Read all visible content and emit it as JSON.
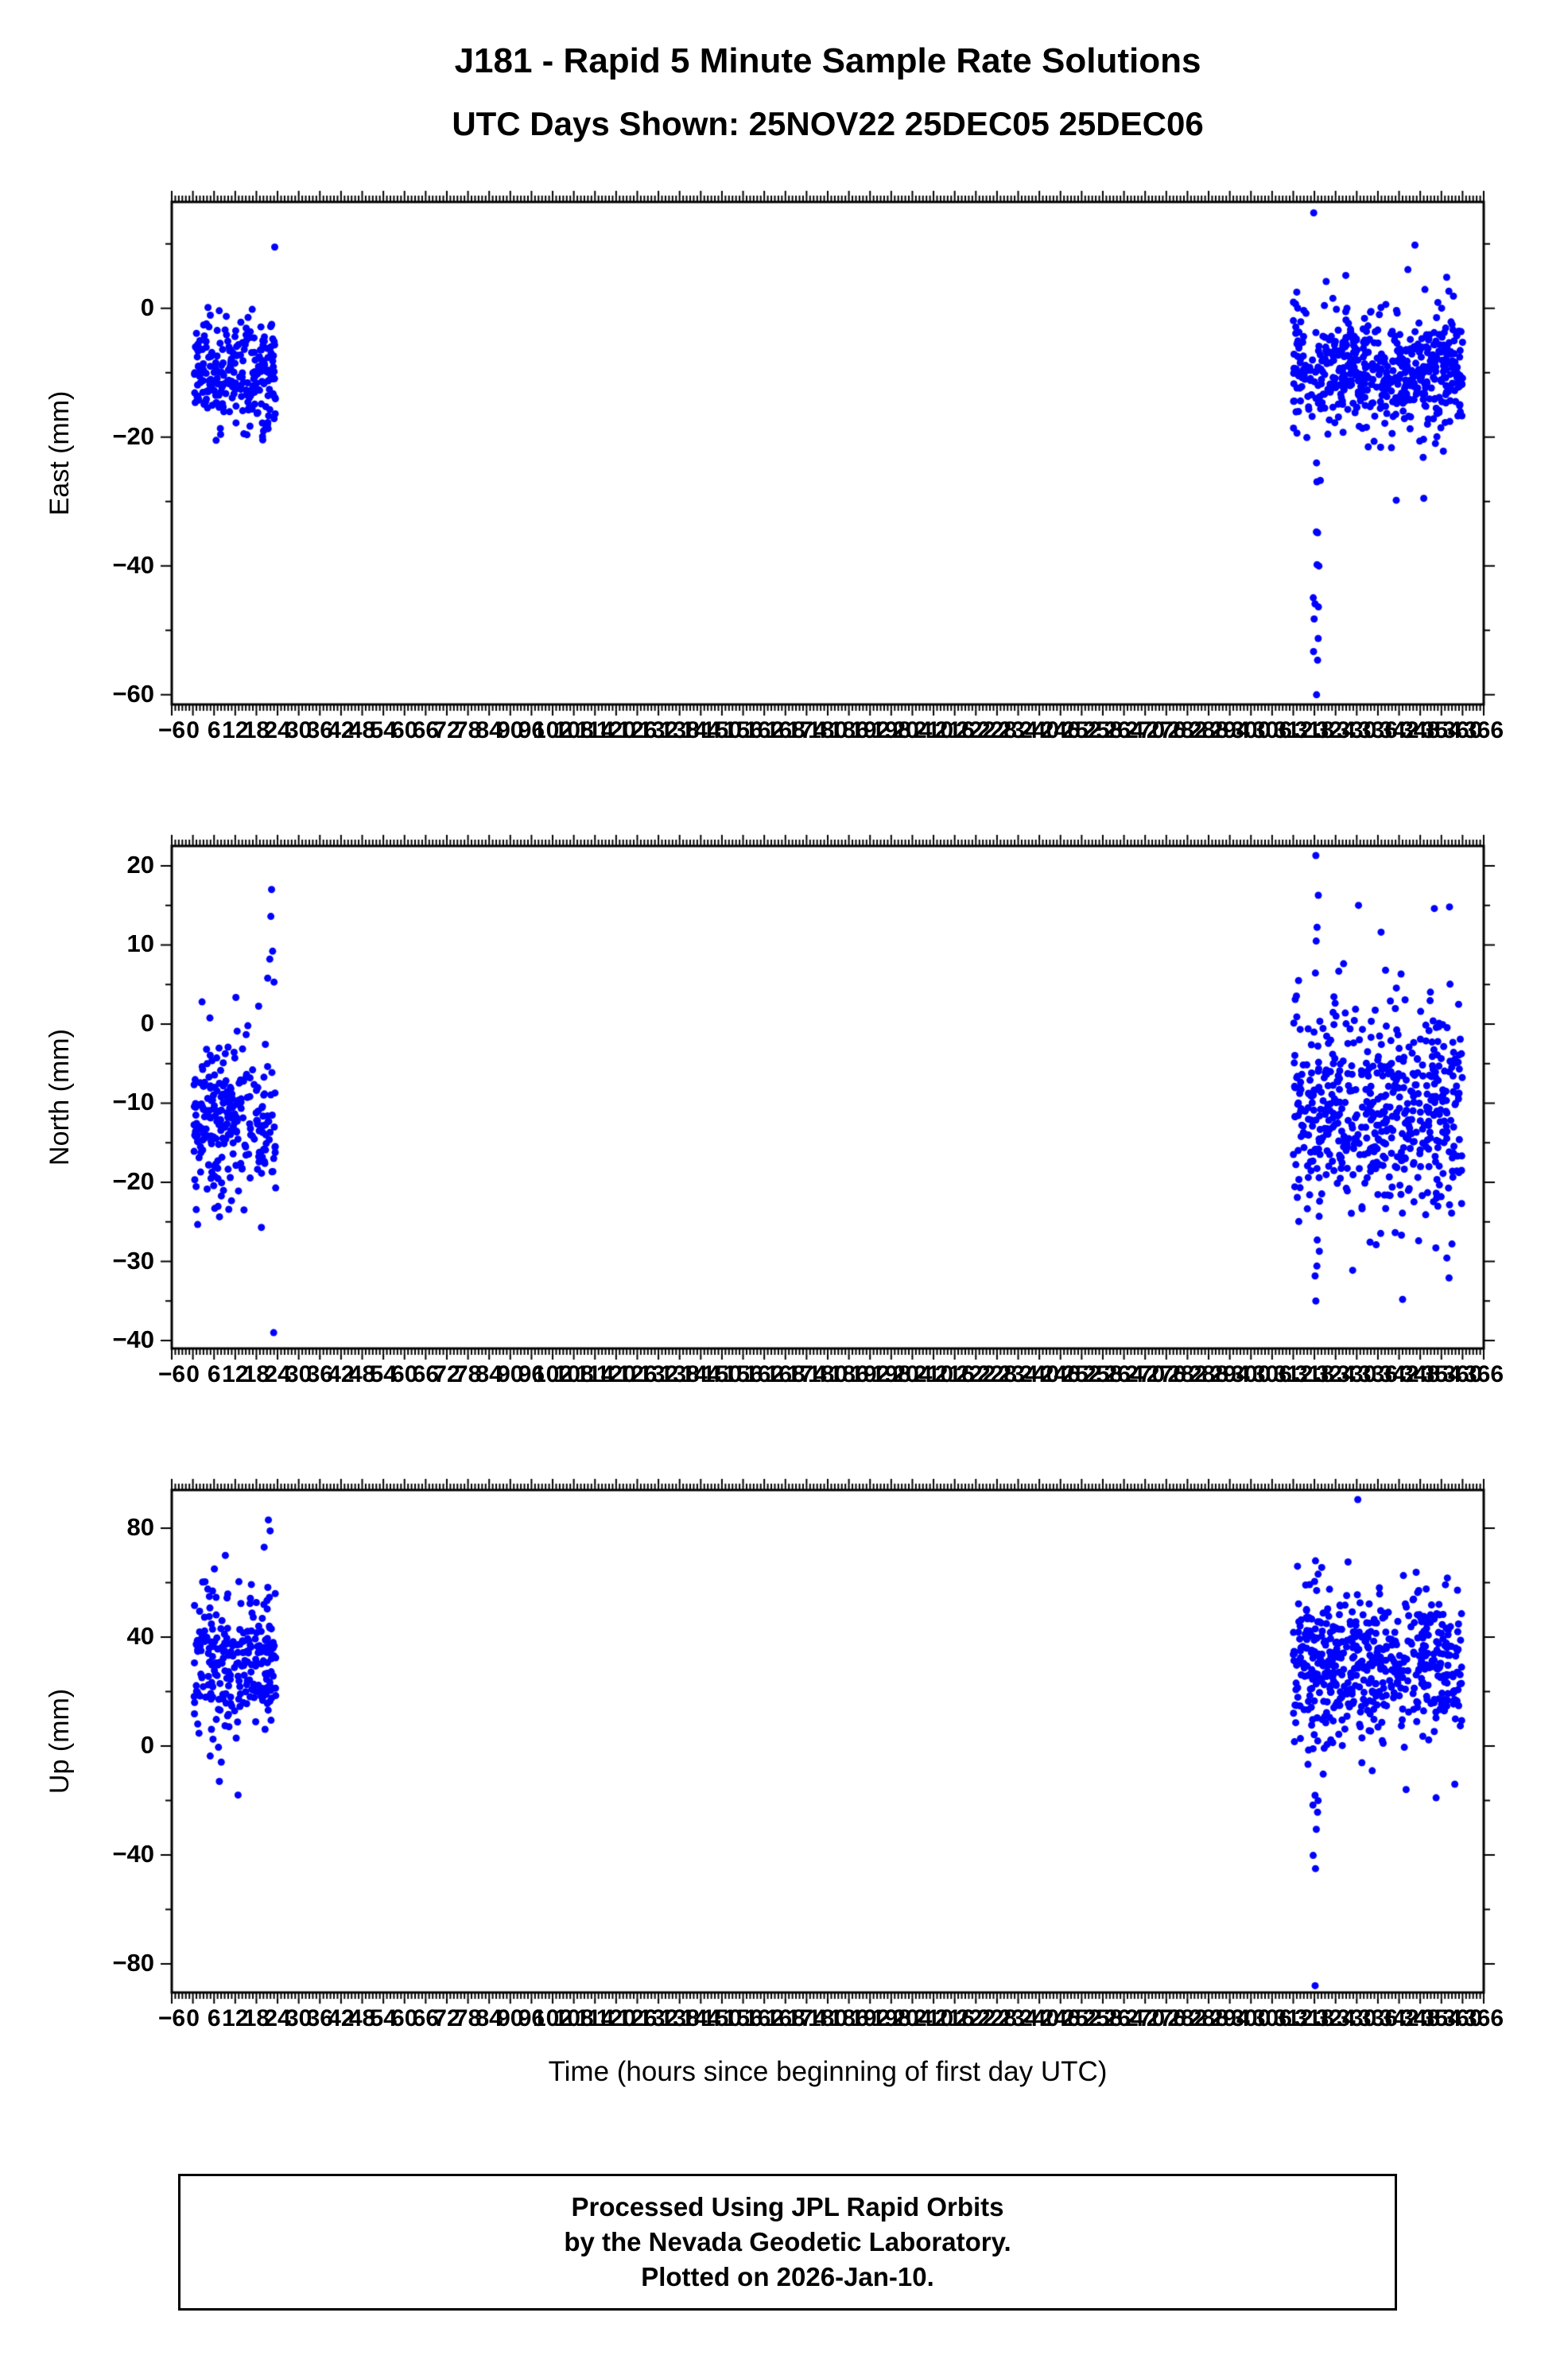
{
  "title": "J181 - Rapid 5 Minute Sample Rate Solutions",
  "subtitle": "UTC Days Shown:  25NOV22 25DEC05 25DEC06",
  "xlabel": "Time (hours since beginning of first day UTC)",
  "footer": {
    "line1": "Processed Using JPL Rapid Orbits",
    "line2": "by the Nevada Geodetic Laboratory.",
    "line3": "Plotted on 2026-Jan-10."
  },
  "colors": {
    "point": "#0000ff",
    "axis": "#000000",
    "background": "#ffffff"
  },
  "style": {
    "point_radius": 4.5
  },
  "x_axis": {
    "min": -6,
    "max": 366,
    "major_step": 6,
    "minor_step": 1,
    "note": "tick labels every 6 hours from -6 to 366, heavily overlapping"
  },
  "chart_data": [
    {
      "type": "scatter",
      "ylabel": "East (mm)",
      "ylim": [
        -61.5,
        16.5
      ],
      "yticks": [
        0,
        -20,
        -40,
        -60
      ],
      "ytick_labels": [
        "0",
        "−20",
        "−40",
        "−60"
      ],
      "yminor_step": 10,
      "clusters": [
        {
          "x_range": [
            0.3,
            23.5
          ],
          "n": 250,
          "y_mean": -10.5,
          "y_std": 4.2,
          "y_clip": [
            -23.5,
            2.5
          ]
        },
        {
          "x_range": [
            312,
            360
          ],
          "n": 540,
          "y_mean": -10,
          "y_std": 4.8,
          "y_clip": [
            -26,
            6
          ]
        }
      ],
      "streaks": [
        {
          "x": 318.6,
          "x_jitter": 1.2,
          "y_range": [
            -60,
            -24
          ],
          "n": 15
        }
      ],
      "outliers": [
        [
          23.2,
          9.5
        ],
        [
          317.8,
          14.8
        ],
        [
          346.5,
          9.8
        ],
        [
          349,
          -29.5
        ],
        [
          344.5,
          6
        ],
        [
          355.5,
          4.8
        ],
        [
          313,
          2.5
        ],
        [
          352.3,
          -21
        ],
        [
          341.2,
          -29.8
        ]
      ]
    },
    {
      "type": "scatter",
      "ylabel": "North (mm)",
      "ylim": [
        -41,
        22.5
      ],
      "yticks": [
        20,
        10,
        0,
        -10,
        -20,
        -30,
        -40
      ],
      "ytick_labels": [
        "20",
        "10",
        "0",
        "−10",
        "−20",
        "−30",
        "−40"
      ],
      "yminor_step": 5,
      "clusters": [
        {
          "x_range": [
            0.3,
            23.5
          ],
          "n": 255,
          "y_mean": -12,
          "y_std": 5.2,
          "y_clip": [
            -28.5,
            4
          ]
        },
        {
          "x_range": [
            312,
            360
          ],
          "n": 545,
          "y_mean": -11,
          "y_std": 6.8,
          "y_clip": [
            -33,
            13
          ]
        }
      ],
      "streaks": [
        {
          "x": 318.4,
          "x_jitter": 1.0,
          "y_range": [
            -35,
            21.3
          ],
          "n": 13
        }
      ],
      "outliers": [
        [
          21.2,
          5.8
        ],
        [
          21.8,
          8.2
        ],
        [
          22.1,
          13.6
        ],
        [
          22.3,
          17
        ],
        [
          22.6,
          9.2
        ],
        [
          23,
          5.3
        ],
        [
          22.9,
          -39
        ],
        [
          330.5,
          15
        ],
        [
          352,
          14.6
        ],
        [
          356.3,
          14.8
        ],
        [
          343,
          -34.8
        ],
        [
          335.5,
          -27.9
        ],
        [
          357,
          -27.8
        ],
        [
          313.5,
          5.5
        ]
      ]
    },
    {
      "type": "scatter",
      "ylabel": "Up (mm)",
      "ylim": [
        -90.5,
        94
      ],
      "yticks": [
        80,
        40,
        0,
        -40,
        -80
      ],
      "ytick_labels": [
        "80",
        "40",
        "0",
        "−40",
        "−80"
      ],
      "yminor_step": 20,
      "clusters": [
        {
          "x_range": [
            0.3,
            23.5
          ],
          "n": 255,
          "y_mean": 30,
          "y_std": 13,
          "y_clip": [
            -8,
            68
          ]
        },
        {
          "x_range": [
            312,
            360
          ],
          "n": 545,
          "y_mean": 31,
          "y_std": 14,
          "y_clip": [
            -12,
            70
          ]
        }
      ],
      "streaks": [
        {
          "x": 318.3,
          "x_jitter": 1.0,
          "y_range": [
            -45,
            68
          ],
          "n": 12
        }
      ],
      "outliers": [
        [
          21.4,
          83
        ],
        [
          21.9,
          79
        ],
        [
          20.2,
          73
        ],
        [
          9.2,
          70
        ],
        [
          12.8,
          -18
        ],
        [
          7.5,
          -13
        ],
        [
          330.3,
          90.5
        ],
        [
          318.2,
          -88
        ],
        [
          344,
          -16
        ],
        [
          352.5,
          -19
        ],
        [
          357.8,
          -14
        ],
        [
          313.2,
          66
        ]
      ]
    }
  ]
}
